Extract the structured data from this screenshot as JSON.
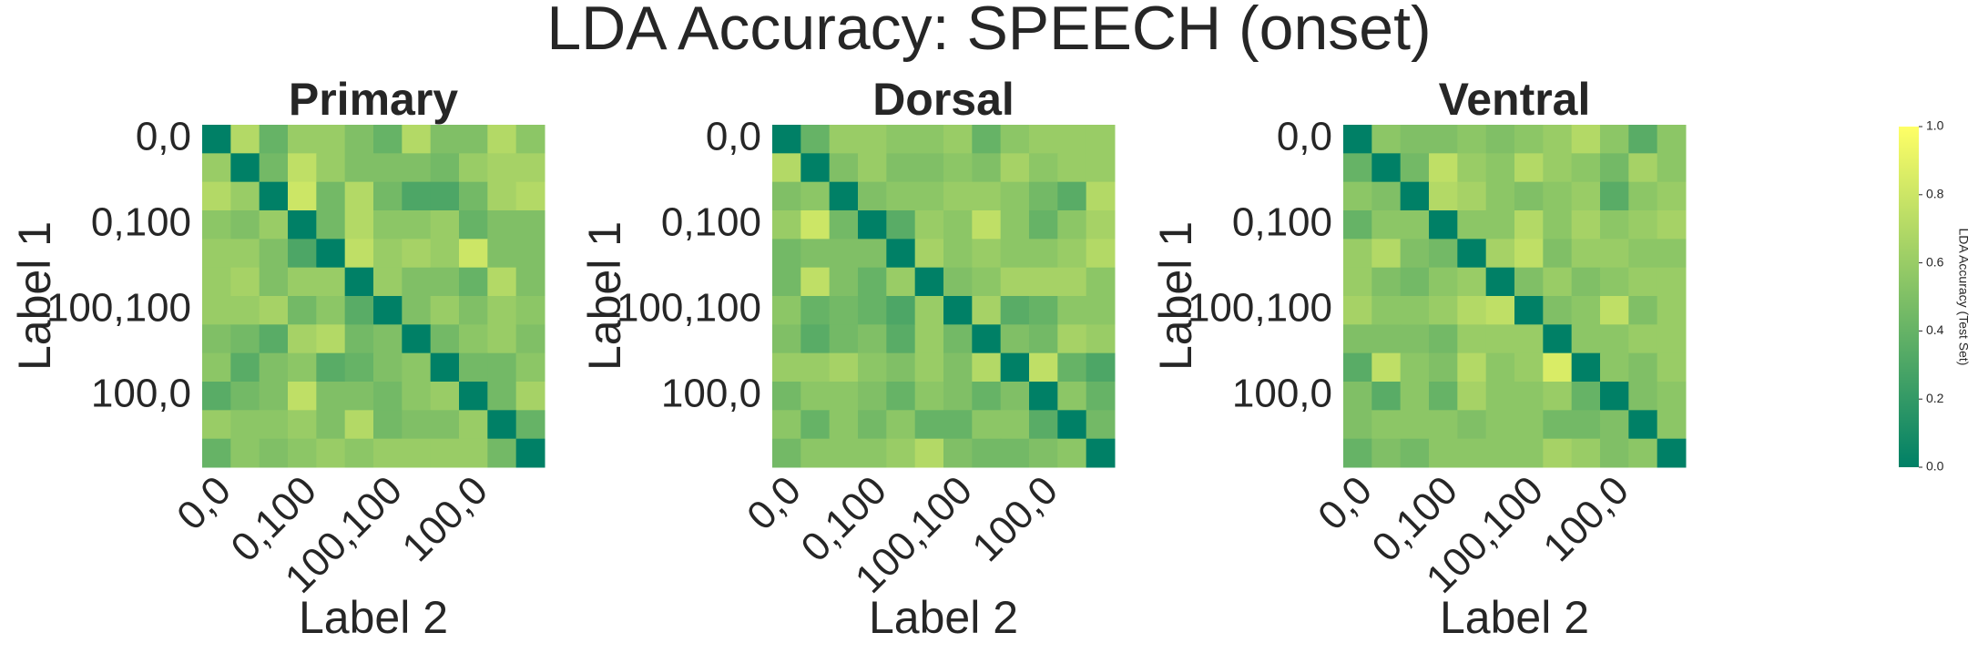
{
  "title": "LDA Accuracy: SPEECH (onset)",
  "colorbar": {
    "label": "LDA Accuracy (Test Set)",
    "colormap": "summer",
    "vlim": [
      0,
      1
    ],
    "ticks": [
      {
        "value": 0,
        "label": "0.0"
      },
      0.2,
      0.4,
      0.6,
      0.8,
      {
        "value": 1,
        "label": "1.0"
      }
    ]
  },
  "chart_data": [
    {
      "type": "heatmap",
      "title": "Primary",
      "xlabel": "Label 2",
      "ylabel": "Label 1",
      "columns": [
        "0,0",
        null,
        null,
        "0,100",
        null,
        null,
        "100,100",
        null,
        null,
        "100,0",
        null,
        null
      ],
      "rows": [
        "0,0",
        null,
        null,
        "0,100",
        null,
        null,
        "100,100",
        null,
        null,
        "100,0",
        null,
        null
      ],
      "values": [
        [
          0,
          0.7,
          0.4,
          0.6,
          0.6,
          0.5,
          0.4,
          0.7,
          0.5,
          0.5,
          0.7,
          0.55
        ],
        [
          0.6,
          0,
          0.45,
          0.75,
          0.6,
          0.5,
          0.5,
          0.5,
          0.45,
          0.6,
          0.65,
          0.65
        ],
        [
          0.7,
          0.6,
          0,
          0.8,
          0.45,
          0.7,
          0.45,
          0.3,
          0.3,
          0.45,
          0.65,
          0.7
        ],
        [
          0.55,
          0.5,
          0.6,
          0,
          0.45,
          0.7,
          0.55,
          0.55,
          0.6,
          0.4,
          0.5,
          0.5
        ],
        [
          0.6,
          0.6,
          0.5,
          0.3,
          0,
          0.75,
          0.6,
          0.65,
          0.6,
          0.8,
          0.5,
          0.5
        ],
        [
          0.6,
          0.65,
          0.5,
          0.6,
          0.6,
          0,
          0.6,
          0.5,
          0.5,
          0.4,
          0.7,
          0.5
        ],
        [
          0.6,
          0.6,
          0.65,
          0.45,
          0.55,
          0.35,
          0,
          0.5,
          0.6,
          0.5,
          0.6,
          0.55
        ],
        [
          0.5,
          0.45,
          0.35,
          0.65,
          0.7,
          0.45,
          0.5,
          0,
          0.45,
          0.55,
          0.6,
          0.5
        ],
        [
          0.55,
          0.35,
          0.5,
          0.55,
          0.35,
          0.4,
          0.5,
          0.55,
          0,
          0.45,
          0.45,
          0.55
        ],
        [
          0.35,
          0.45,
          0.5,
          0.75,
          0.5,
          0.5,
          0.45,
          0.55,
          0.6,
          0,
          0.45,
          0.65
        ],
        [
          0.6,
          0.55,
          0.55,
          0.6,
          0.5,
          0.7,
          0.45,
          0.5,
          0.5,
          0.6,
          0,
          0.4
        ],
        [
          0.4,
          0.55,
          0.5,
          0.55,
          0.6,
          0.55,
          0.6,
          0.6,
          0.6,
          0.6,
          0.45,
          0
        ]
      ]
    },
    {
      "type": "heatmap",
      "title": "Dorsal",
      "xlabel": "Label 2",
      "ylabel": "Label 1",
      "columns": [
        "0,0",
        null,
        null,
        "0,100",
        null,
        null,
        "100,100",
        null,
        null,
        "100,0",
        null,
        null
      ],
      "rows": [
        "0,0",
        null,
        null,
        "0,100",
        null,
        null,
        "100,100",
        null,
        null,
        "100,0",
        null,
        null
      ],
      "values": [
        [
          0,
          0.4,
          0.6,
          0.6,
          0.55,
          0.55,
          0.6,
          0.4,
          0.55,
          0.6,
          0.6,
          0.6
        ],
        [
          0.7,
          0,
          0.5,
          0.6,
          0.5,
          0.5,
          0.55,
          0.5,
          0.65,
          0.55,
          0.6,
          0.6
        ],
        [
          0.5,
          0.55,
          0,
          0.5,
          0.55,
          0.55,
          0.6,
          0.6,
          0.55,
          0.45,
          0.35,
          0.7
        ],
        [
          0.6,
          0.8,
          0.45,
          0,
          0.35,
          0.6,
          0.55,
          0.75,
          0.55,
          0.4,
          0.55,
          0.65
        ],
        [
          0.45,
          0.5,
          0.5,
          0.5,
          0,
          0.65,
          0.55,
          0.6,
          0.55,
          0.55,
          0.6,
          0.7
        ],
        [
          0.45,
          0.75,
          0.5,
          0.4,
          0.6,
          0,
          0.5,
          0.55,
          0.65,
          0.65,
          0.65,
          0.55
        ],
        [
          0.55,
          0.4,
          0.45,
          0.4,
          0.3,
          0.6,
          0,
          0.65,
          0.35,
          0.4,
          0.55,
          0.55
        ],
        [
          0.5,
          0.35,
          0.45,
          0.5,
          0.35,
          0.6,
          0.45,
          0,
          0.5,
          0.45,
          0.65,
          0.6
        ],
        [
          0.6,
          0.6,
          0.65,
          0.55,
          0.5,
          0.6,
          0.5,
          0.7,
          0,
          0.75,
          0.4,
          0.3
        ],
        [
          0.45,
          0.55,
          0.55,
          0.5,
          0.4,
          0.55,
          0.5,
          0.4,
          0.5,
          0,
          0.55,
          0.4
        ],
        [
          0.55,
          0.4,
          0.55,
          0.45,
          0.55,
          0.4,
          0.4,
          0.55,
          0.55,
          0.35,
          0,
          0.45
        ],
        [
          0.45,
          0.55,
          0.55,
          0.55,
          0.6,
          0.7,
          0.5,
          0.45,
          0.45,
          0.5,
          0.55,
          0
        ]
      ]
    },
    {
      "type": "heatmap",
      "title": "Ventral",
      "xlabel": "Label 2",
      "ylabel": "Label 1",
      "columns": [
        "0,0",
        null,
        null,
        "0,100",
        null,
        null,
        "100,100",
        null,
        null,
        "100,0",
        null,
        null
      ],
      "rows": [
        "0,0",
        null,
        null,
        "0,100",
        null,
        null,
        "100,100",
        null,
        null,
        "100,0",
        null,
        null
      ],
      "values": [
        [
          0,
          0.55,
          0.5,
          0.5,
          0.55,
          0.5,
          0.55,
          0.6,
          0.7,
          0.55,
          0.35,
          0.55
        ],
        [
          0.4,
          0,
          0.45,
          0.75,
          0.6,
          0.55,
          0.7,
          0.6,
          0.55,
          0.45,
          0.65,
          0.55
        ],
        [
          0.55,
          0.5,
          0,
          0.7,
          0.65,
          0.55,
          0.5,
          0.55,
          0.6,
          0.35,
          0.55,
          0.6
        ],
        [
          0.4,
          0.55,
          0.55,
          0,
          0.55,
          0.55,
          0.7,
          0.55,
          0.65,
          0.55,
          0.6,
          0.65
        ],
        [
          0.6,
          0.7,
          0.5,
          0.45,
          0,
          0.65,
          0.75,
          0.5,
          0.6,
          0.6,
          0.55,
          0.55
        ],
        [
          0.6,
          0.5,
          0.45,
          0.55,
          0.6,
          0,
          0.5,
          0.6,
          0.5,
          0.55,
          0.6,
          0.6
        ],
        [
          0.65,
          0.55,
          0.55,
          0.6,
          0.7,
          0.75,
          0,
          0.5,
          0.55,
          0.75,
          0.5,
          0.6
        ],
        [
          0.5,
          0.5,
          0.5,
          0.45,
          0.6,
          0.6,
          0.6,
          0,
          0.55,
          0.55,
          0.6,
          0.6
        ],
        [
          0.35,
          0.75,
          0.55,
          0.5,
          0.7,
          0.55,
          0.6,
          0.85,
          0,
          0.55,
          0.5,
          0.6
        ],
        [
          0.5,
          0.35,
          0.55,
          0.4,
          0.65,
          0.55,
          0.55,
          0.6,
          0.4,
          0,
          0.5,
          0.55
        ],
        [
          0.5,
          0.55,
          0.55,
          0.55,
          0.5,
          0.55,
          0.55,
          0.45,
          0.45,
          0.5,
          0,
          0.55
        ],
        [
          0.4,
          0.5,
          0.45,
          0.55,
          0.55,
          0.55,
          0.55,
          0.65,
          0.6,
          0.5,
          0.55,
          0
        ]
      ]
    }
  ]
}
